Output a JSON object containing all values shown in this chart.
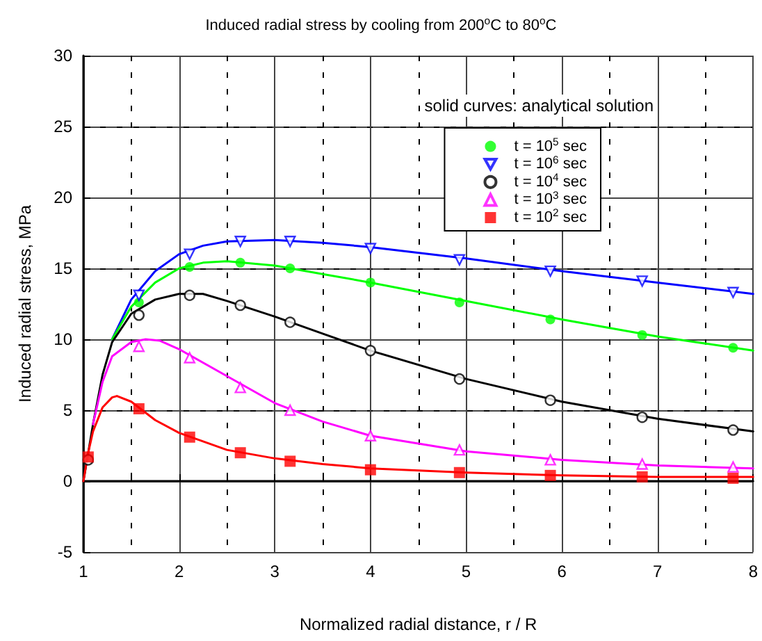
{
  "chart_data": {
    "type": "scatter",
    "title": "Induced radial stress by cooling from 200$^{o}$C to 80$^{o}$C",
    "xlabel": "Normalized radial distance, r / R",
    "ylabel": "Induced radial stress, MPa",
    "annotations": [
      "solid curves: analytical solution"
    ],
    "xlim": [
      1,
      8
    ],
    "xticks": [
      1,
      2,
      3,
      4,
      5,
      6,
      7,
      8
    ],
    "ylim": [
      -5,
      30
    ],
    "yticks": [
      -5,
      0,
      5,
      10,
      15,
      20,
      25,
      30
    ],
    "grid": true,
    "legend": "top right",
    "series": [
      {
        "type": "line",
        "color": "#0000ff",
        "marker": "none",
        "x": [
          1.3,
          1.5,
          1.75,
          2,
          2.25,
          2.5,
          3,
          3.5,
          4,
          5,
          6,
          7,
          8
        ],
        "values": [
          10,
          12.8,
          14.8,
          16,
          16.6,
          16.9,
          17,
          16.8,
          16.5,
          15.7,
          14.8,
          14,
          13.2
        ]
      },
      {
        "type": "line",
        "color": "#00ff00",
        "marker": "none",
        "x": [
          1.3,
          1.5,
          1.75,
          2,
          2.25,
          2.5,
          3,
          3.5,
          4,
          5,
          6,
          7,
          8
        ],
        "values": [
          10,
          12.3,
          14,
          15,
          15.4,
          15.5,
          15.2,
          14.6,
          14,
          12.7,
          11.4,
          10.2,
          9.2
        ]
      },
      {
        "type": "line",
        "color": "#000000",
        "marker": "none",
        "x": [
          1,
          1.1,
          1.2,
          1.3,
          1.5,
          1.75,
          2,
          2.25,
          2.5,
          3,
          3.5,
          4,
          5,
          6,
          7,
          8
        ],
        "values": [
          0,
          4,
          7.5,
          9.8,
          11.8,
          12.8,
          13.2,
          13.2,
          12.7,
          11.6,
          10.4,
          9.2,
          7.2,
          5.6,
          4.4,
          3.5
        ]
      },
      {
        "type": "line",
        "color": "#ff00ff",
        "marker": "none",
        "x": [
          1.1,
          1.2,
          1.3,
          1.5,
          1.65,
          1.8,
          2,
          2.5,
          3,
          3.5,
          4,
          5,
          6,
          7,
          8
        ],
        "values": [
          4,
          7,
          8.8,
          9.8,
          10,
          9.9,
          9.3,
          7.4,
          5.5,
          4.2,
          3.2,
          2.1,
          1.5,
          1.1,
          0.9
        ]
      },
      {
        "type": "line",
        "color": "#ff0000",
        "marker": "none",
        "x": [
          1,
          1.05,
          1.1,
          1.2,
          1.3,
          1.35,
          1.5,
          1.75,
          2,
          2.5,
          3,
          3.5,
          4,
          5,
          6,
          7,
          8
        ],
        "values": [
          0,
          2,
          3.5,
          5.2,
          5.9,
          6,
          5.6,
          4.3,
          3.4,
          2.2,
          1.6,
          1.2,
          0.9,
          0.6,
          0.4,
          0.3,
          0.3
        ]
      },
      {
        "name": "t = 10$^{5}$ sec",
        "color": "#00ff00",
        "marker": "circle",
        "x": [
          1.58,
          2.11,
          2.64,
          3.16,
          4.0,
          4.93,
          5.88,
          6.84,
          7.79
        ],
        "values": [
          12.6,
          15.1,
          15.4,
          15.0,
          14.0,
          12.6,
          11.4,
          10.3,
          9.4
        ]
      },
      {
        "name": "t = 10$^{6}$ sec",
        "color": "#0000ff",
        "marker": "triangle-down-open",
        "x": [
          1.58,
          2.11,
          2.64,
          3.16,
          4.0,
          4.93,
          5.88,
          6.84,
          7.79
        ],
        "values": [
          13.1,
          16.0,
          16.9,
          16.9,
          16.4,
          15.6,
          14.8,
          14.1,
          13.3
        ]
      },
      {
        "name": "t = 10$^{4}$ sec",
        "color": "#000000",
        "marker": "circle-open",
        "x": [
          1.05,
          1.58,
          2.11,
          2.64,
          3.16,
          4.0,
          4.93,
          5.88,
          6.84,
          7.79
        ],
        "values": [
          1.5,
          11.7,
          13.1,
          12.4,
          11.2,
          9.2,
          7.2,
          5.7,
          4.5,
          3.6
        ]
      },
      {
        "name": "t = 10$^{3}$ sec",
        "color": "#ff00ff",
        "marker": "triangle-open",
        "x": [
          1.58,
          2.11,
          2.64,
          3.16,
          4.0,
          4.93,
          5.88,
          6.84,
          7.79
        ],
        "values": [
          9.5,
          8.7,
          6.6,
          5.0,
          3.2,
          2.2,
          1.5,
          1.2,
          1.0
        ]
      },
      {
        "name": "t = 10$^{2}$ sec",
        "color": "#ff0000",
        "marker": "square",
        "x": [
          1.05,
          1.58,
          2.11,
          2.64,
          3.16,
          4.0,
          4.93,
          5.88,
          6.84,
          7.79
        ],
        "values": [
          1.7,
          5.1,
          3.1,
          2.0,
          1.4,
          0.8,
          0.6,
          0.4,
          0.3,
          0.2
        ]
      }
    ]
  }
}
